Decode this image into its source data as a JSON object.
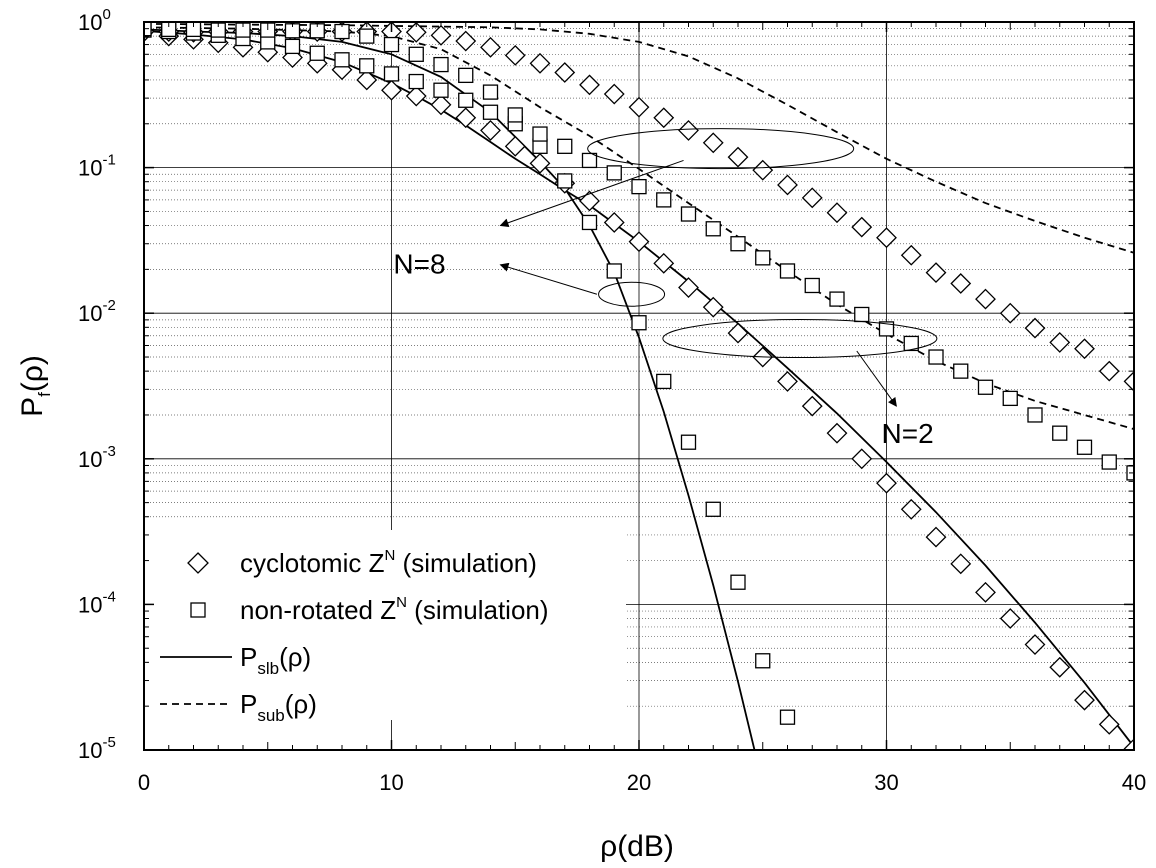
{
  "chart_data": {
    "type": "line",
    "title": "",
    "xlabel": "ρ(dB)",
    "ylabel": {
      "base": "P",
      "sub": "f",
      "arg": "(ρ)"
    },
    "xlim": [
      0,
      40
    ],
    "ylim": [
      1e-05,
      1
    ],
    "yscale": "log",
    "grid": true,
    "legend_position": "bottom-left",
    "x_ticks": [
      {
        "value": 0,
        "label": "0"
      },
      {
        "value": 10,
        "label": "10"
      },
      {
        "value": 20,
        "label": "20"
      },
      {
        "value": 30,
        "label": "30"
      },
      {
        "value": 40,
        "label": "40"
      }
    ],
    "y_ticks": [
      {
        "value": 1,
        "base": "10",
        "exp": "0"
      },
      {
        "value": 0.1,
        "base": "10",
        "exp": "-1"
      },
      {
        "value": 0.01,
        "base": "10",
        "exp": "-2"
      },
      {
        "value": 0.001,
        "base": "10",
        "exp": "-3"
      },
      {
        "value": 0.0001,
        "base": "10",
        "exp": "-4"
      },
      {
        "value": 1e-05,
        "base": "10",
        "exp": "-5"
      }
    ],
    "legend": [
      {
        "marker": "diamond",
        "text": "cyclotomic Z",
        "sup": "N",
        "after": " (simulation)"
      },
      {
        "marker": "square",
        "text": "non-rotated Z",
        "sup": "N",
        "after": " (simulation)"
      },
      {
        "marker": "solid",
        "text": "P",
        "sub": "slb",
        "after": "(ρ)"
      },
      {
        "marker": "dashed",
        "text": "P",
        "sub": "sub",
        "after": "(ρ)"
      }
    ],
    "annotations": [
      {
        "text": "N=8",
        "x": 10.4,
        "y": 0.022
      },
      {
        "text": "N=2",
        "x": 29.8,
        "y": 0.0015
      }
    ],
    "series": [
      {
        "style": "solid",
        "x": [
          0,
          2,
          4,
          6,
          8,
          10,
          12,
          14,
          16,
          17,
          18,
          19,
          20,
          21,
          22,
          23,
          24,
          25,
          26
        ],
        "y": [
          0.89,
          0.86,
          0.84,
          0.8,
          0.73,
          0.6,
          0.42,
          0.24,
          0.11,
          0.072,
          0.04,
          0.019,
          0.0068,
          0.0021,
          0.00056,
          0.000135,
          2.95e-05,
          5.8e-06,
          1e-05
        ]
      },
      {
        "style": "solid",
        "x": [
          0,
          2,
          4,
          6,
          8,
          10,
          11,
          12,
          13,
          14,
          15,
          16,
          17,
          18,
          20,
          22,
          24,
          26,
          28,
          30,
          32,
          34,
          36,
          38,
          40
        ],
        "y": [
          0.87,
          0.82,
          0.76,
          0.66,
          0.53,
          0.38,
          0.31,
          0.25,
          0.195,
          0.15,
          0.115,
          0.09,
          0.07,
          0.055,
          0.031,
          0.0165,
          0.0085,
          0.0042,
          0.00205,
          0.00095,
          0.00043,
          0.000185,
          7.5e-05,
          2.9e-05,
          1.05e-05
        ]
      },
      {
        "style": "dashed",
        "x": [
          0,
          4,
          8,
          10,
          12,
          14,
          16,
          18,
          20,
          22,
          24,
          26,
          28,
          30,
          32,
          34,
          36,
          38,
          40
        ],
        "y": [
          0.92,
          0.9,
          0.86,
          0.8,
          0.65,
          0.43,
          0.26,
          0.165,
          0.098,
          0.057,
          0.0335,
          0.0195,
          0.0115,
          0.0072,
          0.0047,
          0.0033,
          0.0025,
          0.002,
          0.0016
        ]
      },
      {
        "style": "dashed",
        "x": [
          0,
          4,
          8,
          12,
          14,
          16,
          18,
          20,
          22,
          24,
          26,
          28,
          30,
          32,
          34,
          36,
          38,
          40
        ],
        "y": [
          0.97,
          0.96,
          0.95,
          0.93,
          0.92,
          0.89,
          0.83,
          0.73,
          0.58,
          0.41,
          0.27,
          0.175,
          0.115,
          0.08,
          0.057,
          0.043,
          0.033,
          0.026
        ]
      },
      {
        "name": "cyclotomic Z^N (simulation)",
        "marker": "diamond",
        "x": [
          0,
          1,
          2,
          3,
          4,
          5,
          6,
          7,
          8,
          9,
          10,
          11,
          12,
          13,
          14,
          15,
          16,
          17,
          18,
          19,
          20,
          21,
          22,
          23,
          24,
          25,
          26,
          27,
          28,
          29,
          30,
          31,
          32,
          33,
          34,
          35,
          36,
          37,
          38,
          39,
          40
        ],
        "y": [
          0.86,
          0.8,
          0.76,
          0.72,
          0.67,
          0.62,
          0.57,
          0.52,
          0.47,
          0.4,
          0.34,
          0.31,
          0.27,
          0.22,
          0.18,
          0.14,
          0.107,
          0.078,
          0.059,
          0.042,
          0.031,
          0.022,
          0.015,
          0.011,
          0.0073,
          0.005,
          0.0034,
          0.0023,
          0.0015,
          0.001,
          0.00068,
          0.00045,
          0.00029,
          0.00019,
          0.000121,
          8e-05,
          5.3e-05,
          3.7e-05,
          2.2e-05,
          1.5e-05,
          1.02e-05
        ]
      },
      {
        "name": "cyclotomic Z^N (simulation)",
        "marker": "diamond",
        "x": [
          0,
          1,
          2,
          3,
          4,
          5,
          6,
          7,
          8,
          9,
          10,
          11,
          12,
          13,
          14,
          15,
          16,
          17,
          18,
          19,
          20,
          21,
          22,
          23,
          24,
          25,
          26,
          27,
          28,
          29,
          30,
          31,
          32,
          33,
          34,
          35,
          36,
          37,
          38,
          39,
          40
        ],
        "y": [
          0.86,
          0.86,
          0.85,
          0.86,
          0.86,
          0.86,
          0.86,
          0.86,
          0.86,
          0.86,
          0.86,
          0.85,
          0.81,
          0.74,
          0.67,
          0.59,
          0.52,
          0.45,
          0.37,
          0.32,
          0.26,
          0.22,
          0.18,
          0.148,
          0.118,
          0.096,
          0.076,
          0.062,
          0.049,
          0.039,
          0.033,
          0.025,
          0.019,
          0.016,
          0.0125,
          0.01,
          0.0079,
          0.0063,
          0.0057,
          0.004,
          0.0034
        ]
      },
      {
        "name": "non-rotated Z^N (simulation)",
        "marker": "square",
        "x": [
          0,
          1,
          2,
          3,
          4,
          5,
          6,
          7,
          8,
          9,
          10,
          11,
          12,
          13,
          14,
          15,
          16,
          17,
          18,
          19,
          20,
          21,
          22,
          23,
          24,
          25,
          26
        ],
        "y": [
          0.88,
          0.86,
          0.84,
          0.81,
          0.77,
          0.73,
          0.68,
          0.61,
          0.55,
          0.5,
          0.44,
          0.39,
          0.34,
          0.29,
          0.24,
          0.2,
          0.14,
          0.081,
          0.042,
          0.0195,
          0.0086,
          0.0034,
          0.0013,
          0.00045,
          0.000142,
          4.1e-05,
          1.68e-05
        ]
      },
      {
        "name": "non-rotated Z^N (simulation)",
        "marker": "square",
        "x": [
          0,
          1,
          2,
          3,
          4,
          5,
          6,
          7,
          8,
          9,
          10,
          11,
          12,
          13,
          14,
          15,
          16,
          17,
          18,
          19,
          20,
          21,
          22,
          23,
          24,
          25,
          26,
          27,
          28,
          29,
          30,
          31,
          32,
          33,
          34,
          35,
          36,
          37,
          38,
          39,
          40
        ],
        "y": [
          0.9,
          0.89,
          0.89,
          0.88,
          0.88,
          0.88,
          0.87,
          0.87,
          0.86,
          0.8,
          0.7,
          0.6,
          0.51,
          0.43,
          0.33,
          0.23,
          0.17,
          0.14,
          0.112,
          0.092,
          0.074,
          0.06,
          0.048,
          0.038,
          0.03,
          0.024,
          0.0195,
          0.0155,
          0.0125,
          0.0098,
          0.0078,
          0.0062,
          0.005,
          0.004,
          0.0031,
          0.0026,
          0.002,
          0.0015,
          0.0012,
          0.00095,
          0.0008
        ]
      }
    ]
  }
}
